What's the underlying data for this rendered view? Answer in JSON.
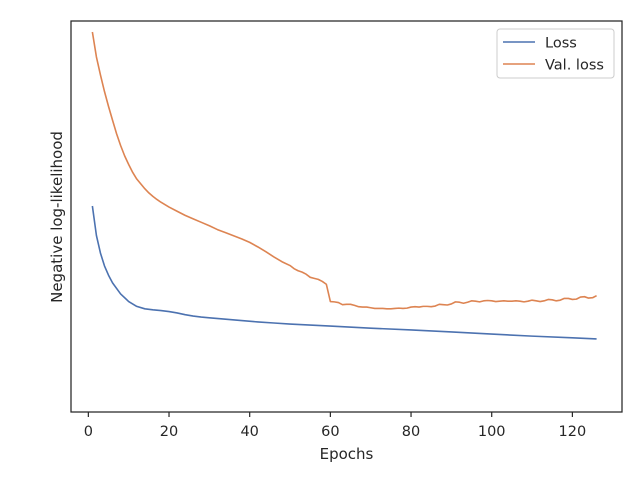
{
  "chart_data": {
    "type": "line",
    "title": "",
    "xlabel": "Epochs",
    "ylabel": "Negative log-likelihood",
    "xlim": [
      -4.3,
      132.3
    ],
    "ylim": [
      0,
      1
    ],
    "yticks_shown": false,
    "x_ticks": [
      0,
      20,
      40,
      60,
      80,
      100,
      120
    ],
    "grid": false,
    "legend_placement": "top-right",
    "series": [
      {
        "name": "Loss",
        "color": "#4c72b0",
        "points": [
          [
            1,
            0.497
          ],
          [
            2,
            0.412
          ],
          [
            3,
            0.361
          ],
          [
            4,
            0.324
          ],
          [
            5,
            0.297
          ],
          [
            6,
            0.275
          ],
          [
            8,
            0.243
          ],
          [
            10,
            0.221
          ],
          [
            12,
            0.207
          ],
          [
            14,
            0.2
          ],
          [
            16,
            0.197
          ],
          [
            18,
            0.195
          ],
          [
            20,
            0.192
          ],
          [
            22,
            0.188
          ],
          [
            24,
            0.183
          ],
          [
            26,
            0.179
          ],
          [
            28,
            0.176
          ],
          [
            30,
            0.174
          ],
          [
            34,
            0.17
          ],
          [
            38,
            0.166
          ],
          [
            42,
            0.162
          ],
          [
            46,
            0.159
          ],
          [
            50,
            0.156
          ],
          [
            55,
            0.153
          ],
          [
            60,
            0.15
          ],
          [
            70,
            0.144
          ],
          [
            80,
            0.139
          ],
          [
            90,
            0.133
          ],
          [
            100,
            0.127
          ],
          [
            110,
            0.121
          ],
          [
            120,
            0.116
          ],
          [
            126,
            0.113
          ]
        ]
      },
      {
        "name": "Val. loss",
        "color": "#dd8452",
        "points": [
          [
            1,
            1.0
          ],
          [
            2,
            0.928
          ],
          [
            3,
            0.876
          ],
          [
            4,
            0.828
          ],
          [
            5,
            0.785
          ],
          [
            6,
            0.745
          ],
          [
            7,
            0.706
          ],
          [
            8,
            0.672
          ],
          [
            9,
            0.642
          ],
          [
            10,
            0.617
          ],
          [
            11,
            0.594
          ],
          [
            12,
            0.575
          ],
          [
            13,
            0.561
          ],
          [
            14,
            0.547
          ],
          [
            15,
            0.535
          ],
          [
            16,
            0.525
          ],
          [
            17,
            0.516
          ],
          [
            18,
            0.508
          ],
          [
            20,
            0.494
          ],
          [
            22,
            0.482
          ],
          [
            24,
            0.47
          ],
          [
            26,
            0.46
          ],
          [
            28,
            0.45
          ],
          [
            30,
            0.44
          ],
          [
            32,
            0.429
          ],
          [
            34,
            0.42
          ],
          [
            36,
            0.411
          ],
          [
            38,
            0.402
          ],
          [
            40,
            0.392
          ],
          [
            42,
            0.379
          ],
          [
            44,
            0.365
          ],
          [
            46,
            0.35
          ],
          [
            48,
            0.336
          ],
          [
            50,
            0.325
          ],
          [
            51,
            0.316
          ],
          [
            52,
            0.31
          ],
          [
            53,
            0.306
          ],
          [
            54,
            0.3
          ],
          [
            55,
            0.291
          ],
          [
            56,
            0.288
          ],
          [
            57,
            0.285
          ],
          [
            58,
            0.279
          ],
          [
            59,
            0.271
          ],
          [
            60,
            0.221
          ],
          [
            61,
            0.22
          ],
          [
            62,
            0.218
          ],
          [
            63,
            0.212
          ],
          [
            64,
            0.213
          ],
          [
            65,
            0.213
          ],
          [
            66,
            0.21
          ],
          [
            67,
            0.206
          ],
          [
            68,
            0.205
          ],
          [
            69,
            0.205
          ],
          [
            70,
            0.203
          ],
          [
            71,
            0.201
          ],
          [
            72,
            0.201
          ],
          [
            73,
            0.201
          ],
          [
            74,
            0.2
          ],
          [
            75,
            0.2
          ],
          [
            76,
            0.201
          ],
          [
            77,
            0.202
          ],
          [
            78,
            0.201
          ],
          [
            79,
            0.202
          ],
          [
            80,
            0.205
          ],
          [
            81,
            0.206
          ],
          [
            82,
            0.205
          ],
          [
            83,
            0.207
          ],
          [
            84,
            0.207
          ],
          [
            85,
            0.206
          ],
          [
            86,
            0.208
          ],
          [
            87,
            0.213
          ],
          [
            88,
            0.212
          ],
          [
            89,
            0.211
          ],
          [
            90,
            0.214
          ],
          [
            91,
            0.22
          ],
          [
            92,
            0.219
          ],
          [
            93,
            0.216
          ],
          [
            94,
            0.219
          ],
          [
            95,
            0.223
          ],
          [
            96,
            0.222
          ],
          [
            97,
            0.22
          ],
          [
            98,
            0.223
          ],
          [
            99,
            0.224
          ],
          [
            100,
            0.223
          ],
          [
            101,
            0.221
          ],
          [
            102,
            0.222
          ],
          [
            103,
            0.223
          ],
          [
            104,
            0.222
          ],
          [
            105,
            0.222
          ],
          [
            106,
            0.223
          ],
          [
            107,
            0.222
          ],
          [
            108,
            0.22
          ],
          [
            109,
            0.222
          ],
          [
            110,
            0.225
          ],
          [
            111,
            0.223
          ],
          [
            112,
            0.221
          ],
          [
            113,
            0.223
          ],
          [
            114,
            0.227
          ],
          [
            115,
            0.226
          ],
          [
            116,
            0.223
          ],
          [
            117,
            0.225
          ],
          [
            118,
            0.23
          ],
          [
            119,
            0.23
          ],
          [
            120,
            0.227
          ],
          [
            121,
            0.228
          ],
          [
            122,
            0.234
          ],
          [
            123,
            0.235
          ],
          [
            124,
            0.231
          ],
          [
            125,
            0.232
          ],
          [
            126,
            0.238
          ]
        ]
      }
    ]
  }
}
